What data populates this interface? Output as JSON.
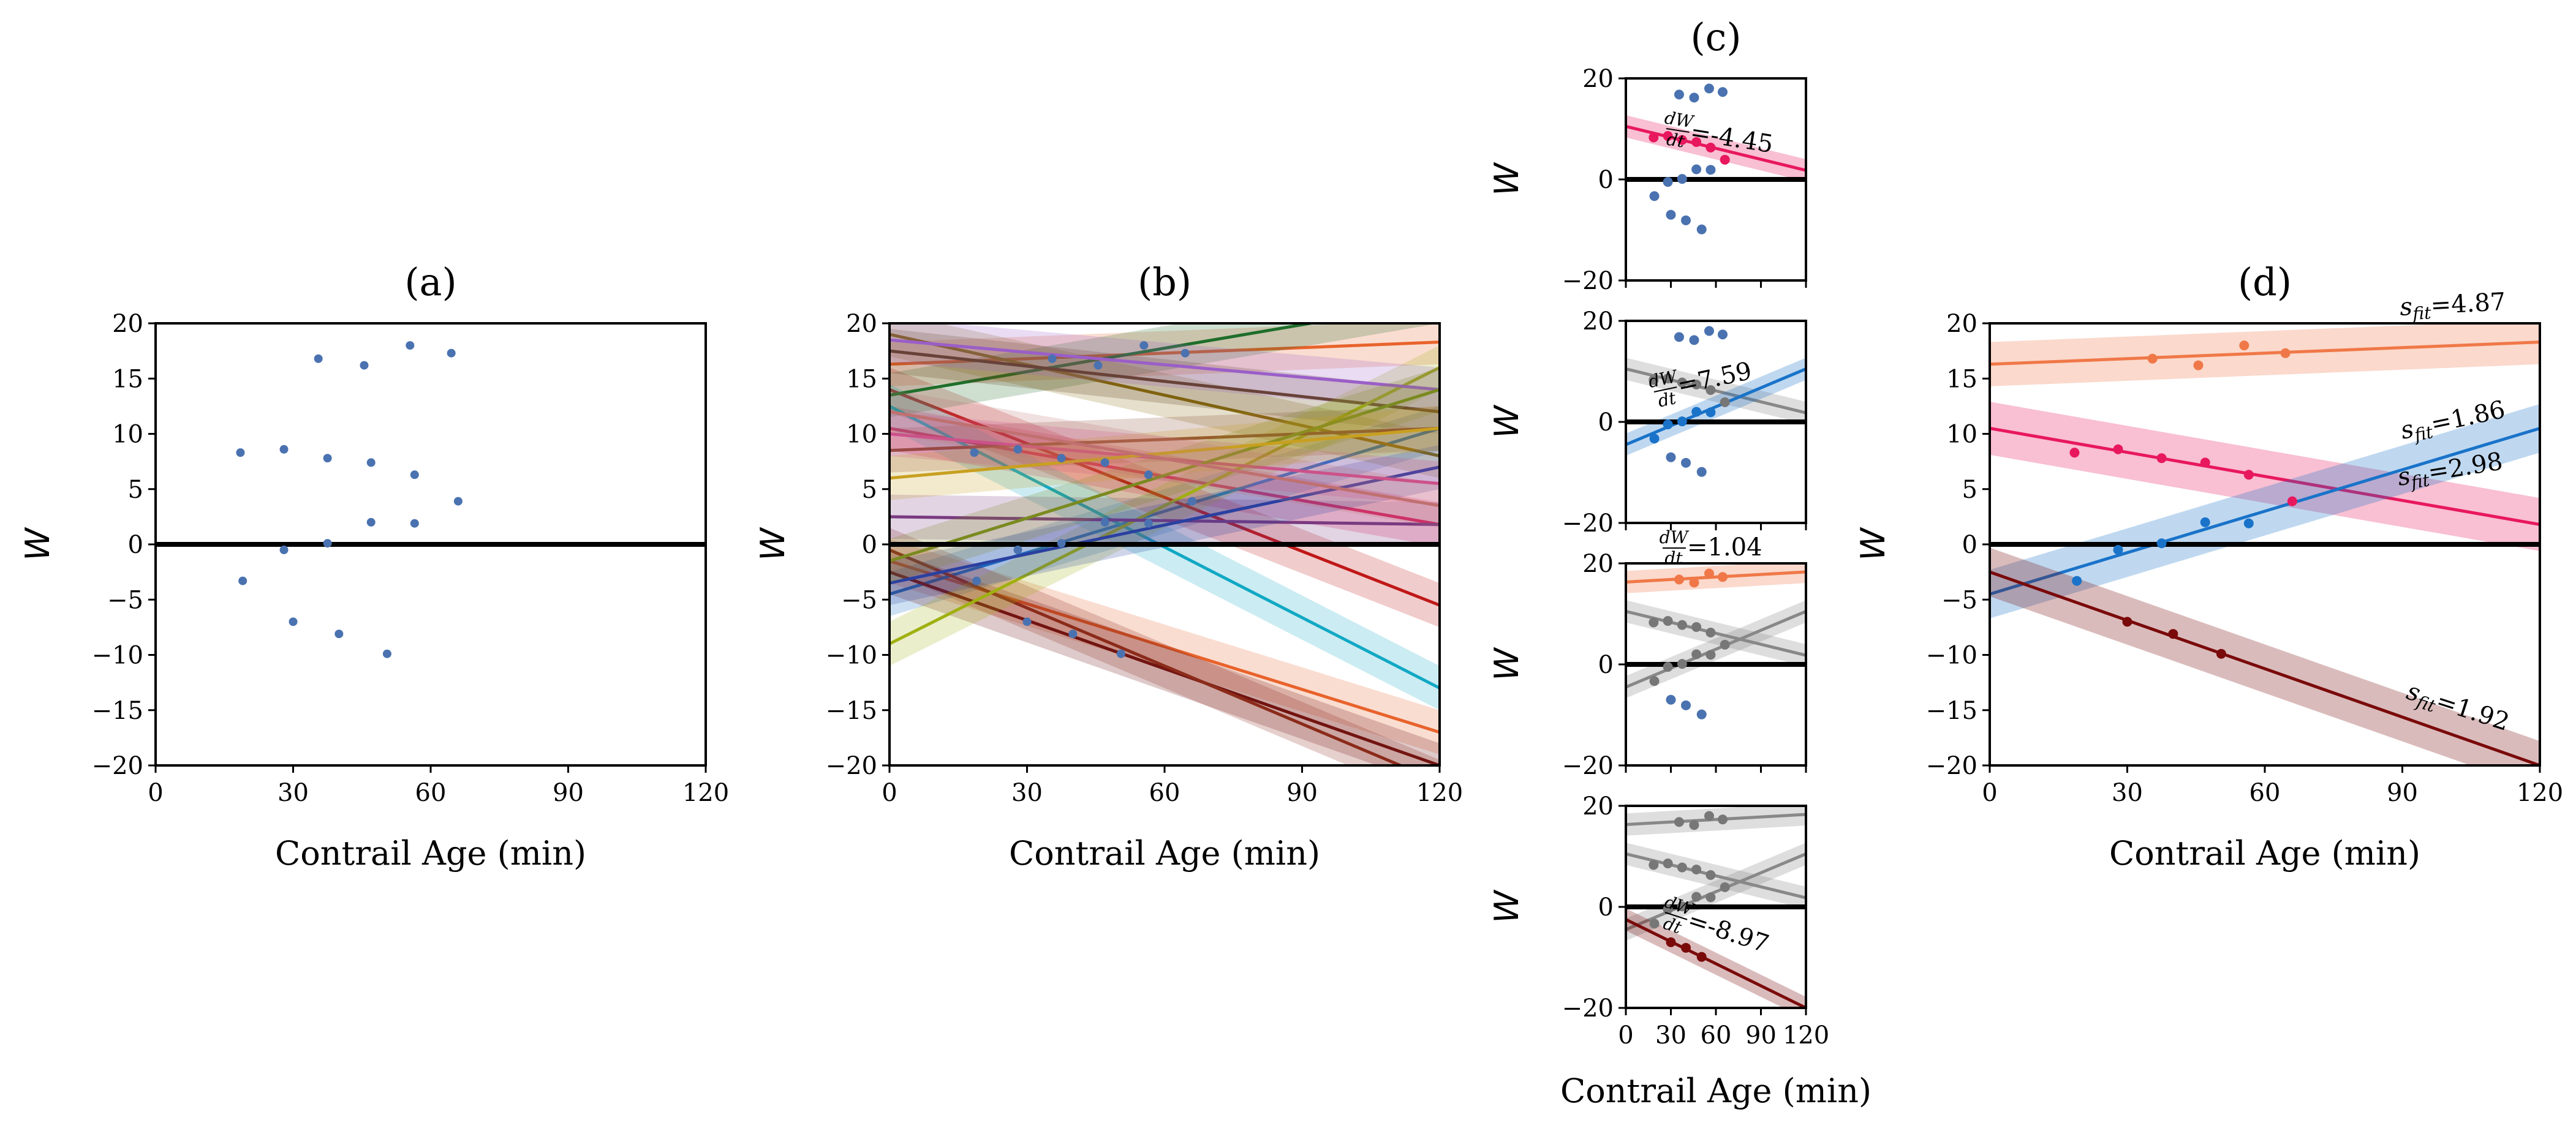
{
  "chart_data": [
    {
      "panel": "a",
      "type": "scatter",
      "title": "(a)",
      "xlabel": "Contrail Age (min)",
      "ylabel": "W",
      "xlim": [
        0,
        120
      ],
      "ylim": [
        -20,
        20
      ],
      "xticks": [
        "0",
        "30",
        "60",
        "90",
        "120"
      ],
      "yticks": [
        "-20",
        "-15",
        "-10",
        "-5",
        "0",
        "5",
        "10",
        "15",
        "20"
      ],
      "zero_line": true,
      "point_color": "#4a72b0",
      "points": [
        [
          18.5,
          8.3
        ],
        [
          28,
          8.6
        ],
        [
          37.5,
          7.8
        ],
        [
          47,
          7.4
        ],
        [
          56.5,
          6.3
        ],
        [
          66,
          3.9
        ],
        [
          35.5,
          16.8
        ],
        [
          45.5,
          16.2
        ],
        [
          55.5,
          18.0
        ],
        [
          64.5,
          17.3
        ],
        [
          47,
          2.0
        ],
        [
          56.5,
          1.9
        ],
        [
          37.5,
          0.1
        ],
        [
          28,
          -0.5
        ],
        [
          19,
          -3.3
        ],
        [
          30,
          -7.0
        ],
        [
          40,
          -8.1
        ],
        [
          50.5,
          -9.9
        ]
      ]
    },
    {
      "panel": "b",
      "type": "line",
      "title": "(b)",
      "xlabel": "Contrail Age (min)",
      "ylabel": "W",
      "xlim": [
        0,
        120
      ],
      "ylim": [
        -20,
        20
      ],
      "xticks": [
        "0",
        "30",
        "60",
        "90",
        "120"
      ],
      "yticks": [
        "-20",
        "-15",
        "-10",
        "-5",
        "0",
        "5",
        "10",
        "15",
        "20"
      ],
      "zero_line": true,
      "point_color": "#4a72b0",
      "points_same_as_panel": "a",
      "band_halfwidth": 2.0,
      "series": [
        {
          "color": "#e8632c",
          "y0": 16.3,
          "y1": 18.3
        },
        {
          "color": "#e8632c",
          "y0": -1.5,
          "y1": -17.0
        },
        {
          "color": "#e8185e",
          "y0": 10.5,
          "y1": 1.8
        },
        {
          "color": "#1a73c9",
          "y0": -4.5,
          "y1": 10.5
        },
        {
          "color": "#6b0f0f",
          "y0": -2.5,
          "y1": -20.0
        },
        {
          "color": "#8b2b1a",
          "y0": -0.5,
          "y1": -21.5
        },
        {
          "color": "#c01818",
          "y0": 14.0,
          "y1": -5.5
        },
        {
          "color": "#10a8c4",
          "y0": 12.5,
          "y1": -13.0
        },
        {
          "color": "#1e6e2a",
          "y0": 13.5,
          "y1": 22.0
        },
        {
          "color": "#8a6d10",
          "y0": 19.0,
          "y1": 8.0
        },
        {
          "color": "#5a3a10",
          "y0": 17.5,
          "y1": 12.0
        },
        {
          "color": "#a0b010",
          "y0": -9.0,
          "y1": 16.0
        },
        {
          "color": "#9a5ec8",
          "y0": 18.5,
          "y1": 14.0
        },
        {
          "color": "#7a3a80",
          "y0": 2.5,
          "y1": 1.8
        },
        {
          "color": "#8a4a30",
          "y0": 8.5,
          "y1": 10.5
        },
        {
          "color": "#2a40a0",
          "y0": -3.5,
          "y1": 7.0
        },
        {
          "color": "#d04a90",
          "y0": 10.0,
          "y1": 5.5
        },
        {
          "color": "#7a8a20",
          "y0": -1.5,
          "y1": 14.0
        },
        {
          "color": "#c8a020",
          "y0": 6.0,
          "y1": 10.5
        },
        {
          "color": "#c07070",
          "y0": 12.0,
          "y1": 3.5
        }
      ]
    },
    {
      "panel": "c1",
      "type": "scatter+line",
      "title": "(c)",
      "ylabel": "W",
      "xlim": [
        0,
        120
      ],
      "ylim": [
        -20,
        20
      ],
      "yticks": [
        "-20",
        "0",
        "20"
      ],
      "zero_line": true,
      "annotation": "=-4.45",
      "annotation_frac": [
        "dW",
        "dt"
      ],
      "gray_points": [],
      "blue_points": [
        [
          35.5,
          16.8
        ],
        [
          45.5,
          16.2
        ],
        [
          55.5,
          18.0
        ],
        [
          64.5,
          17.3
        ],
        [
          47,
          2.0
        ],
        [
          56.5,
          1.9
        ],
        [
          37.5,
          0.1
        ],
        [
          28,
          -0.5
        ],
        [
          19,
          -3.3
        ],
        [
          30,
          -7.0
        ],
        [
          40,
          -8.1
        ],
        [
          50.5,
          -9.9
        ]
      ],
      "fit": {
        "color": "#e8185e",
        "y0": 10.5,
        "y1": 1.8,
        "band": 2.2,
        "points": [
          [
            18.5,
            8.3
          ],
          [
            28,
            8.6
          ],
          [
            37.5,
            7.8
          ],
          [
            47,
            7.4
          ],
          [
            56.5,
            6.3
          ],
          [
            66,
            3.9
          ]
        ]
      }
    },
    {
      "panel": "c2",
      "type": "scatter+line",
      "ylabel": "W",
      "xlim": [
        0,
        120
      ],
      "ylim": [
        -20,
        20
      ],
      "yticks": [
        "-20",
        "0",
        "20"
      ],
      "zero_line": true,
      "annotation": "=7.59",
      "annotation_frac": [
        "dW",
        "dt"
      ],
      "gray_fits": [
        {
          "y0": 10.5,
          "y1": 1.8
        }
      ],
      "gray_points": [
        [
          18.5,
          8.3
        ],
        [
          28,
          8.6
        ],
        [
          37.5,
          7.8
        ],
        [
          47,
          7.4
        ],
        [
          56.5,
          6.3
        ],
        [
          66,
          3.9
        ]
      ],
      "blue_points": [
        [
          35.5,
          16.8
        ],
        [
          45.5,
          16.2
        ],
        [
          55.5,
          18.0
        ],
        [
          64.5,
          17.3
        ],
        [
          30,
          -7.0
        ],
        [
          40,
          -8.1
        ],
        [
          50.5,
          -9.9
        ]
      ],
      "fit": {
        "color": "#1a73c9",
        "y0": -4.5,
        "y1": 10.5,
        "band": 2.2,
        "points": [
          [
            47,
            2.0
          ],
          [
            56.5,
            1.9
          ],
          [
            37.5,
            0.1
          ],
          [
            28,
            -0.5
          ],
          [
            19,
            -3.3
          ]
        ]
      }
    },
    {
      "panel": "c3",
      "type": "scatter+line",
      "ylabel": "W",
      "xlim": [
        0,
        120
      ],
      "ylim": [
        -20,
        20
      ],
      "yticks": [
        "-20",
        "0",
        "20"
      ],
      "zero_line": true,
      "annotation": "=1.04",
      "annotation_frac": [
        "dW",
        "dt"
      ],
      "gray_fits": [
        {
          "y0": 10.5,
          "y1": 1.8
        },
        {
          "y0": -4.5,
          "y1": 10.5
        }
      ],
      "gray_points": [
        [
          18.5,
          8.3
        ],
        [
          28,
          8.6
        ],
        [
          37.5,
          7.8
        ],
        [
          47,
          7.4
        ],
        [
          56.5,
          6.3
        ],
        [
          66,
          3.9
        ],
        [
          47,
          2.0
        ],
        [
          56.5,
          1.9
        ],
        [
          37.5,
          0.1
        ],
        [
          28,
          -0.5
        ],
        [
          19,
          -3.3
        ]
      ],
      "blue_points": [
        [
          30,
          -7.0
        ],
        [
          40,
          -8.1
        ],
        [
          50.5,
          -9.9
        ]
      ],
      "fit": {
        "color": "#f07848",
        "y0": 16.3,
        "y1": 18.3,
        "band": 2.2,
        "points": [
          [
            35.5,
            16.8
          ],
          [
            45.5,
            16.2
          ],
          [
            55.5,
            18.0
          ],
          [
            64.5,
            17.3
          ]
        ]
      }
    },
    {
      "panel": "c4",
      "type": "scatter+line",
      "xlabel": "Contrail Age (min)",
      "ylabel": "W",
      "xlim": [
        0,
        120
      ],
      "ylim": [
        -20,
        20
      ],
      "xticks": [
        "0",
        "30",
        "60",
        "90",
        "120"
      ],
      "yticks": [
        "-20",
        "0",
        "20"
      ],
      "zero_line": true,
      "annotation": "=-8.97",
      "annotation_frac": [
        "dW",
        "dt"
      ],
      "gray_fits": [
        {
          "y0": 10.5,
          "y1": 1.8
        },
        {
          "y0": -4.5,
          "y1": 10.5
        },
        {
          "y0": 16.3,
          "y1": 18.3
        }
      ],
      "gray_points": [
        [
          18.5,
          8.3
        ],
        [
          28,
          8.6
        ],
        [
          37.5,
          7.8
        ],
        [
          47,
          7.4
        ],
        [
          56.5,
          6.3
        ],
        [
          66,
          3.9
        ],
        [
          47,
          2.0
        ],
        [
          56.5,
          1.9
        ],
        [
          37.5,
          0.1
        ],
        [
          28,
          -0.5
        ],
        [
          19,
          -3.3
        ],
        [
          35.5,
          16.8
        ],
        [
          45.5,
          16.2
        ],
        [
          55.5,
          18.0
        ],
        [
          64.5,
          17.3
        ]
      ],
      "blue_points": [],
      "fit": {
        "color": "#7a0a0a",
        "y0": -2.5,
        "y1": -20.0,
        "band": 2.2,
        "points": [
          [
            30,
            -7.0
          ],
          [
            40,
            -8.1
          ],
          [
            50.5,
            -9.9
          ]
        ]
      }
    },
    {
      "panel": "d",
      "type": "line",
      "title": "(d)",
      "xlabel": "Contrail Age (min)",
      "ylabel": "W",
      "xlim": [
        0,
        120
      ],
      "ylim": [
        -20,
        20
      ],
      "xticks": [
        "0",
        "30",
        "60",
        "90",
        "120"
      ],
      "yticks": [
        "-20",
        "-15",
        "-10",
        "-5",
        "0",
        "5",
        "10",
        "15",
        "20"
      ],
      "zero_line": true,
      "series": [
        {
          "color": "#f07848",
          "y0": 16.3,
          "y1": 18.3,
          "band": 2.0,
          "label": "=4.87",
          "points": [
            [
              35.5,
              16.8
            ],
            [
              45.5,
              16.2
            ],
            [
              55.5,
              18.0
            ],
            [
              64.5,
              17.3
            ]
          ]
        },
        {
          "color": "#e8185e",
          "y0": 10.5,
          "y1": 1.8,
          "band": 2.4,
          "label": "=2.98",
          "points": [
            [
              18.5,
              8.3
            ],
            [
              28,
              8.6
            ],
            [
              37.5,
              7.8
            ],
            [
              47,
              7.4
            ],
            [
              56.5,
              6.3
            ],
            [
              66,
              3.9
            ]
          ]
        },
        {
          "color": "#1a73c9",
          "y0": -4.5,
          "y1": 10.5,
          "band": 2.2,
          "label": "=1.86",
          "points": [
            [
              47,
              2.0
            ],
            [
              56.5,
              1.9
            ],
            [
              37.5,
              0.1
            ],
            [
              28,
              -0.5
            ],
            [
              19,
              -3.3
            ]
          ]
        },
        {
          "color": "#7a0a0a",
          "y0": -2.5,
          "y1": -20.0,
          "band": 2.2,
          "label": "=1.92",
          "points": [
            [
              30,
              -7.0
            ],
            [
              40,
              -8.1
            ],
            [
              50.5,
              -9.9
            ]
          ]
        }
      ],
      "label_prefix": "s",
      "label_sub": "fit"
    }
  ]
}
